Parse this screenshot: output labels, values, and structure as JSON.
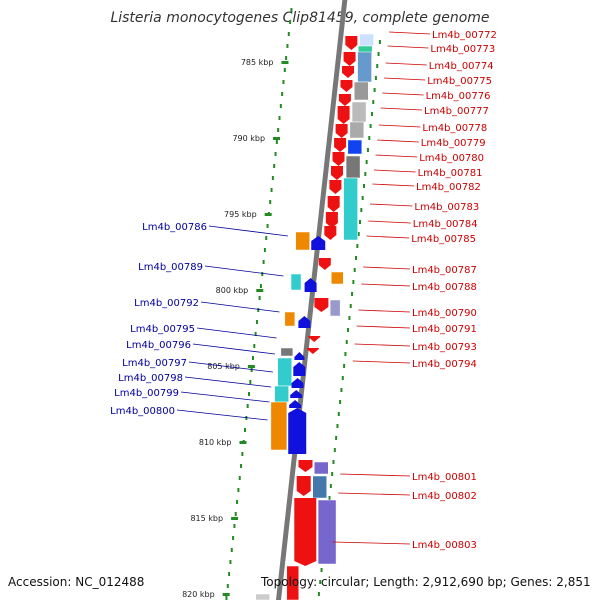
{
  "title": "Listeria monocytogenes Clip81459, complete genome",
  "footer": {
    "accession": "Accession: NC_012488",
    "topology": "Topology: circular; Length: 2,912,690 bp; Genes: 2,851"
  },
  "scale_ticks": [
    "785 kbp",
    "790 kbp",
    "795 kbp",
    "800 kbp",
    "805 kbp",
    "810 kbp",
    "815 kbp",
    "820 kbp"
  ],
  "colors": {
    "forward_label": "#cc0000",
    "reverse_label": "#000099",
    "backbone": "#888888",
    "gc_dots": "#228b22"
  },
  "genes_right": [
    "Lm4b_00772",
    "Lm4b_00773",
    "Lm4b_00774",
    "Lm4b_00775",
    "Lm4b_00776",
    "Lm4b_00777",
    "Lm4b_00778",
    "Lm4b_00779",
    "Lm4b_00780",
    "Lm4b_00781",
    "Lm4b_00782",
    "Lm4b_00783",
    "Lm4b_00784",
    "Lm4b_00785",
    "Lm4b_00787",
    "Lm4b_00788",
    "Lm4b_00790",
    "Lm4b_00791",
    "Lm4b_00793",
    "Lm4b_00794",
    "Lm4b_00801",
    "Lm4b_00802",
    "Lm4b_00803"
  ],
  "genes_left": [
    "Lm4b_00786",
    "Lm4b_00789",
    "Lm4b_00792",
    "Lm4b_00795",
    "Lm4b_00796",
    "Lm4b_00797",
    "Lm4b_00798",
    "Lm4b_00799",
    "Lm4b_00800"
  ]
}
